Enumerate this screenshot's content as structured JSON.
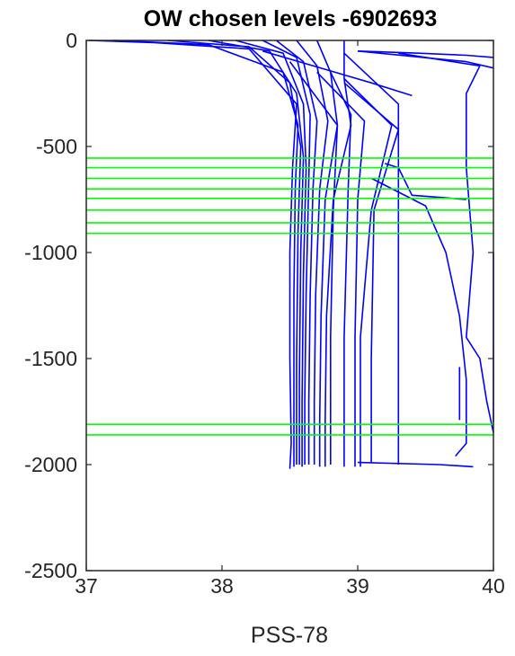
{
  "chart_data": {
    "type": "line",
    "title": "OW chosen levels -6902693",
    "xlabel": "PSS-78",
    "ylabel": "",
    "xlim": [
      37,
      40
    ],
    "ylim": [
      -2500,
      0
    ],
    "xticks": [
      37,
      38,
      39,
      40
    ],
    "xtick_labels": [
      "37",
      "38",
      "39",
      "40"
    ],
    "yticks": [
      0,
      -500,
      -1000,
      -1500,
      -2000,
      -2500
    ],
    "ytick_labels": [
      "0",
      "-500",
      "-1000",
      "-1500",
      "-2000",
      "-2500"
    ],
    "grid": false,
    "legend": "none",
    "colors": {
      "profiles": "#0000ff",
      "levels": "#00ff00",
      "axes": "#262626"
    },
    "chosen_levels": [
      -555,
      -600,
      -650,
      -700,
      -745,
      -800,
      -860,
      -910,
      -1810,
      -1860
    ],
    "series": [
      {
        "x": [
          37.02,
          37.5,
          38.2,
          38.55,
          38.52,
          38.5,
          38.5,
          38.51,
          38.5
        ],
        "y": [
          0,
          -10,
          -40,
          -300,
          -600,
          -1000,
          -1500,
          -1900,
          -2020
        ]
      },
      {
        "x": [
          37.2,
          37.9,
          38.45,
          38.56,
          38.54,
          38.53,
          38.53,
          38.53
        ],
        "y": [
          0,
          -20,
          -150,
          -400,
          -700,
          -1200,
          -1700,
          -2010
        ]
      },
      {
        "x": [
          37.6,
          38.2,
          38.5,
          38.58,
          38.56,
          38.55,
          38.55
        ],
        "y": [
          0,
          -30,
          -200,
          -500,
          -900,
          -1500,
          -2000
        ]
      },
      {
        "x": [
          37.9,
          38.35,
          38.55,
          38.6,
          38.58,
          38.57,
          38.57
        ],
        "y": [
          0,
          -50,
          -250,
          -550,
          -1000,
          -1600,
          -2000
        ]
      },
      {
        "x": [
          38.1,
          38.45,
          38.6,
          38.62,
          38.6,
          38.59,
          38.59
        ],
        "y": [
          0,
          -60,
          -300,
          -600,
          -1100,
          -1700,
          -2010
        ]
      },
      {
        "x": [
          38.3,
          38.55,
          38.65,
          38.64,
          38.62,
          38.61,
          38.61
        ],
        "y": [
          0,
          -80,
          -350,
          -650,
          -1200,
          -1700,
          -2000
        ]
      },
      {
        "x": [
          38.4,
          38.6,
          38.7,
          38.67,
          38.65,
          38.64,
          38.64
        ],
        "y": [
          0,
          -100,
          -380,
          -700,
          -1200,
          -1700,
          -2000
        ]
      },
      {
        "x": [
          38.55,
          38.7,
          38.78,
          38.72,
          38.69,
          38.68,
          38.68
        ],
        "y": [
          0,
          -120,
          -380,
          -700,
          -1200,
          -1700,
          -2000
        ]
      },
      {
        "x": [
          38.7,
          38.8,
          38.85,
          38.76,
          38.73,
          38.72,
          38.72
        ],
        "y": [
          0,
          -150,
          -400,
          -750,
          -1300,
          -1800,
          -2010
        ]
      },
      {
        "x": [
          38.9,
          38.9,
          38.95,
          38.82,
          38.77,
          38.76,
          38.76
        ],
        "y": [
          0,
          -180,
          -400,
          -750,
          -1300,
          -1800,
          -2010
        ]
      },
      {
        "x": [
          38.5,
          38.85,
          38.82,
          38.8,
          38.8
        ],
        "y": [
          -100,
          -400,
          -800,
          -1400,
          -2000
        ]
      },
      {
        "x": [
          38.8,
          38.95,
          38.93,
          38.9,
          38.9
        ],
        "y": [
          -150,
          -350,
          -700,
          -1400,
          -2010
        ]
      },
      {
        "x": [
          38.7,
          39.05,
          39.0,
          38.98,
          38.98
        ],
        "y": [
          -150,
          -380,
          -750,
          -1400,
          -2010
        ]
      },
      {
        "x": [
          38.9,
          39.25,
          39.1,
          39.02,
          39.02
        ],
        "y": [
          -180,
          -400,
          -800,
          -1400,
          -2010
        ]
      },
      {
        "x": [
          38.9,
          39.3,
          39.12,
          39.1,
          39.1
        ],
        "y": [
          -200,
          -420,
          -800,
          -1500,
          -1990
        ]
      },
      {
        "x": [
          38.3,
          39.1,
          39.4
        ],
        "y": [
          -50,
          -200,
          -260
        ]
      },
      {
        "x": [
          38.9,
          39.3,
          39.3
        ],
        "y": [
          -60,
          -300,
          -2000
        ]
      },
      {
        "x": [
          39.0,
          39.8,
          40.0
        ],
        "y": [
          -50,
          -100,
          -130
        ]
      },
      {
        "x": [
          39.0,
          39.45,
          39.8,
          40.0
        ],
        "y": [
          -50,
          -60,
          -70,
          -80
        ]
      },
      {
        "x": [
          39.3,
          39.9,
          39.8,
          39.8,
          39.85,
          39.8,
          39.9,
          39.95,
          40.0
        ],
        "y": [
          -60,
          -120,
          -250,
          -600,
          -1000,
          -1400,
          -1500,
          -1700,
          -1850
        ]
      },
      {
        "x": [
          39.1,
          39.5,
          39.65,
          39.75,
          39.8,
          39.8
        ],
        "y": [
          -650,
          -780,
          -1000,
          -1300,
          -1600,
          -1830
        ]
      },
      {
        "x": [
          39.2,
          39.3,
          39.4,
          39.6,
          39.8
        ],
        "y": [
          -580,
          -600,
          -730,
          -740,
          -750
        ]
      },
      {
        "x": [
          39.0,
          39.6,
          39.85
        ],
        "y": [
          -1990,
          -2000,
          -2010
        ]
      },
      {
        "x": [
          39.75,
          39.75
        ],
        "y": [
          -1540,
          -1790
        ]
      },
      {
        "x": [
          40.0,
          40.0
        ],
        "y": [
          -1000,
          -1800
        ]
      },
      {
        "x": [
          39.72,
          39.8,
          39.8
        ],
        "y": [
          -1960,
          -1900,
          -1830
        ]
      }
    ]
  }
}
